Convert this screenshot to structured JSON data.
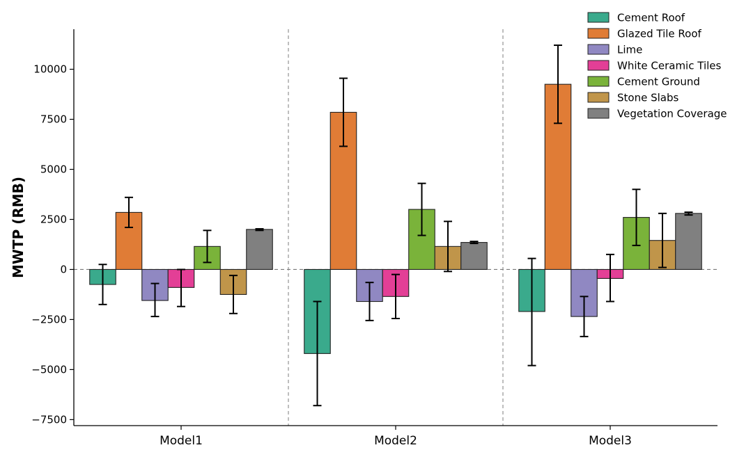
{
  "chart_data": {
    "type": "bar",
    "title": "",
    "xlabel": "",
    "ylabel": "MWTP (RMB)",
    "ylim": [
      -7800,
      12000
    ],
    "yticks": [
      -7500,
      -5000,
      -2500,
      0,
      2500,
      5000,
      7500,
      10000
    ],
    "ytick_labels": [
      "−7500",
      "−5000",
      "−2500",
      "0",
      "2500",
      "5000",
      "7500",
      "10000"
    ],
    "categories": [
      "Model1",
      "Model2",
      "Model3"
    ],
    "legend_position": "top-right",
    "series": [
      {
        "name": "Cement Roof",
        "color": "#3aaa8c",
        "values": [
          -750,
          -4200,
          -2100
        ],
        "err_low": [
          -1750,
          -6800,
          -4800
        ],
        "err_high": [
          250,
          -1600,
          550
        ]
      },
      {
        "name": "Glazed Tile Roof",
        "color": "#e07c36",
        "values": [
          2850,
          7850,
          9250
        ],
        "err_low": [
          2100,
          6150,
          7300
        ],
        "err_high": [
          3600,
          9550,
          11200
        ]
      },
      {
        "name": "Lime",
        "color": "#9088c2",
        "values": [
          -1550,
          -1600,
          -2350
        ],
        "err_low": [
          -2350,
          -2550,
          -3350
        ],
        "err_high": [
          -700,
          -650,
          -1350
        ]
      },
      {
        "name": "White Ceramic Tiles",
        "color": "#e33f96",
        "values": [
          -900,
          -1350,
          -450
        ],
        "err_low": [
          -1850,
          -2450,
          -1600
        ],
        "err_high": [
          0,
          -250,
          750
        ]
      },
      {
        "name": "Cement Ground",
        "color": "#7ab33a",
        "values": [
          1150,
          3000,
          2600
        ],
        "err_low": [
          350,
          1700,
          1200
        ],
        "err_high": [
          1950,
          4300,
          4000
        ]
      },
      {
        "name": "Stone Slabs",
        "color": "#c0954a",
        "values": [
          -1250,
          1150,
          1450
        ],
        "err_low": [
          -2200,
          -100,
          100
        ],
        "err_high": [
          -300,
          2400,
          2800
        ]
      },
      {
        "name": "Vegetation Coverage",
        "color": "#808080",
        "values": [
          2000,
          1350,
          2800
        ],
        "err_low": [
          1950,
          1300,
          2720
        ],
        "err_high": [
          2030,
          1400,
          2860
        ]
      }
    ]
  }
}
